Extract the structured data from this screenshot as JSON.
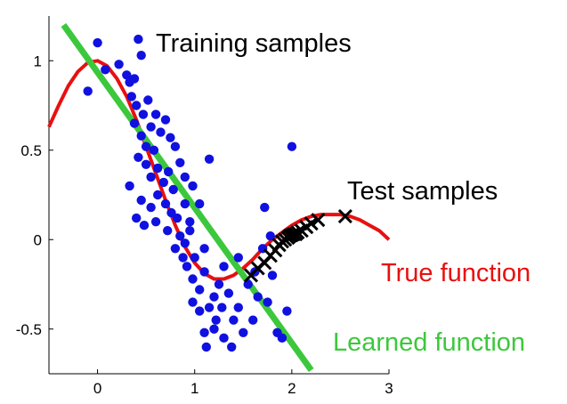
{
  "chart_data": {
    "type": "scatter",
    "title": "",
    "xlabel": "",
    "ylabel": "",
    "xlim": [
      -0.5,
      3.0
    ],
    "ylim": [
      -0.75,
      1.25
    ],
    "xticks": [
      0,
      1,
      2,
      3
    ],
    "yticks": [
      -0.5,
      0,
      0.5,
      1
    ],
    "xtick_labels": [
      "0",
      "1",
      "2",
      "3"
    ],
    "ytick_labels": [
      "-0.5",
      "0",
      "0.5",
      "1"
    ],
    "grid": false,
    "series": [
      {
        "name": "Training samples",
        "kind": "scatter",
        "marker": "circle",
        "color": "#1010e0",
        "points": [
          [
            -0.1,
            0.83
          ],
          [
            0.0,
            1.1
          ],
          [
            0.08,
            0.95
          ],
          [
            0.22,
            0.98
          ],
          [
            0.3,
            0.92
          ],
          [
            0.33,
            0.88
          ],
          [
            0.38,
            0.9
          ],
          [
            0.42,
            1.12
          ],
          [
            0.45,
            1.03
          ],
          [
            0.35,
            0.8
          ],
          [
            0.4,
            0.75
          ],
          [
            0.47,
            0.7
          ],
          [
            0.52,
            0.78
          ],
          [
            0.55,
            0.63
          ],
          [
            0.6,
            0.7
          ],
          [
            0.38,
            0.65
          ],
          [
            0.45,
            0.58
          ],
          [
            0.5,
            0.52
          ],
          [
            0.58,
            0.5
          ],
          [
            0.65,
            0.6
          ],
          [
            0.7,
            0.67
          ],
          [
            0.75,
            0.57
          ],
          [
            0.8,
            0.52
          ],
          [
            0.42,
            0.46
          ],
          [
            0.5,
            0.42
          ],
          [
            0.55,
            0.35
          ],
          [
            0.62,
            0.4
          ],
          [
            0.68,
            0.32
          ],
          [
            0.73,
            0.38
          ],
          [
            0.78,
            0.28
          ],
          [
            0.85,
            0.43
          ],
          [
            0.9,
            0.35
          ],
          [
            0.98,
            0.3
          ],
          [
            1.05,
            0.2
          ],
          [
            0.33,
            0.3
          ],
          [
            0.45,
            0.22
          ],
          [
            0.55,
            0.18
          ],
          [
            0.62,
            0.25
          ],
          [
            0.7,
            0.2
          ],
          [
            0.76,
            0.15
          ],
          [
            0.82,
            0.12
          ],
          [
            0.9,
            0.2
          ],
          [
            0.95,
            0.1
          ],
          [
            0.4,
            0.12
          ],
          [
            0.48,
            0.08
          ],
          [
            0.6,
            0.1
          ],
          [
            0.72,
            0.05
          ],
          [
            0.85,
            0.02
          ],
          [
            0.9,
            -0.02
          ],
          [
            0.95,
            0.05
          ],
          [
            0.8,
            -0.05
          ],
          [
            0.88,
            -0.1
          ],
          [
            0.92,
            -0.15
          ],
          [
            1.0,
            -0.1
          ],
          [
            1.1,
            -0.05
          ],
          [
            1.15,
            0.45
          ],
          [
            0.98,
            -0.22
          ],
          [
            1.05,
            -0.28
          ],
          [
            1.1,
            -0.18
          ],
          [
            1.2,
            -0.32
          ],
          [
            1.25,
            -0.25
          ],
          [
            1.3,
            -0.15
          ],
          [
            0.98,
            -0.35
          ],
          [
            1.05,
            -0.4
          ],
          [
            1.15,
            -0.38
          ],
          [
            1.22,
            -0.45
          ],
          [
            1.28,
            -0.38
          ],
          [
            1.35,
            -0.3
          ],
          [
            1.1,
            -0.52
          ],
          [
            1.2,
            -0.5
          ],
          [
            1.3,
            -0.55
          ],
          [
            1.4,
            -0.45
          ],
          [
            1.45,
            -0.38
          ],
          [
            1.55,
            -0.25
          ],
          [
            1.62,
            -0.18
          ],
          [
            1.7,
            -0.05
          ],
          [
            1.78,
            0.02
          ],
          [
            1.72,
            0.18
          ],
          [
            1.45,
            -0.1
          ],
          [
            1.5,
            -0.52
          ],
          [
            1.6,
            -0.45
          ],
          [
            1.75,
            -0.35
          ],
          [
            1.85,
            -0.52
          ],
          [
            1.9,
            -0.55
          ],
          [
            1.95,
            -0.4
          ],
          [
            2.0,
            0.52
          ],
          [
            1.12,
            -0.6
          ],
          [
            1.38,
            -0.6
          ],
          [
            1.65,
            -0.32
          ],
          [
            1.8,
            -0.2
          ]
        ]
      },
      {
        "name": "Test samples",
        "kind": "scatter",
        "marker": "x",
        "color": "#000000",
        "points": [
          [
            1.58,
            -0.2
          ],
          [
            1.65,
            -0.16
          ],
          [
            1.72,
            -0.13
          ],
          [
            1.78,
            -0.09
          ],
          [
            1.83,
            -0.06
          ],
          [
            1.87,
            -0.03
          ],
          [
            1.9,
            -0.01
          ],
          [
            1.93,
            0.0
          ],
          [
            1.96,
            0.01
          ],
          [
            1.98,
            0.02
          ],
          [
            2.0,
            0.025
          ],
          [
            2.02,
            0.03
          ],
          [
            2.04,
            0.03
          ],
          [
            2.06,
            0.04
          ],
          [
            2.1,
            0.05
          ],
          [
            2.15,
            0.07
          ],
          [
            2.2,
            0.09
          ],
          [
            2.27,
            0.11
          ],
          [
            2.55,
            0.13
          ]
        ]
      },
      {
        "name": "True function",
        "kind": "line",
        "color": "#e81010",
        "x": [
          -0.5,
          -0.4,
          -0.3,
          -0.2,
          -0.1,
          0.0,
          0.1,
          0.2,
          0.3,
          0.4,
          0.5,
          0.6,
          0.7,
          0.8,
          0.9,
          1.0,
          1.1,
          1.2,
          1.3,
          1.4,
          1.5,
          1.6,
          1.7,
          1.8,
          1.9,
          2.0,
          2.1,
          2.2,
          2.3,
          2.4,
          2.5,
          2.6,
          2.7,
          2.8,
          2.9,
          3.0
        ],
        "y": [
          0.63,
          0.75,
          0.86,
          0.94,
          0.99,
          1.0,
          0.97,
          0.9,
          0.8,
          0.67,
          0.52,
          0.37,
          0.22,
          0.08,
          -0.04,
          -0.13,
          -0.19,
          -0.22,
          -0.22,
          -0.2,
          -0.16,
          -0.11,
          -0.05,
          0.0,
          0.04,
          0.08,
          0.11,
          0.13,
          0.14,
          0.14,
          0.14,
          0.13,
          0.11,
          0.08,
          0.05,
          0.0
        ]
      },
      {
        "name": "Learned function",
        "kind": "line",
        "color": "#3cc83c",
        "x": [
          -0.35,
          2.2
        ],
        "y": [
          1.2,
          -0.73
        ]
      }
    ],
    "annotations": [
      {
        "text": "Training samples",
        "color": "#000000"
      },
      {
        "text": "Test samples",
        "color": "#000000"
      },
      {
        "text": "True function",
        "color": "#e81010"
      },
      {
        "text": "Learned function",
        "color": "#3cc83c"
      }
    ]
  }
}
